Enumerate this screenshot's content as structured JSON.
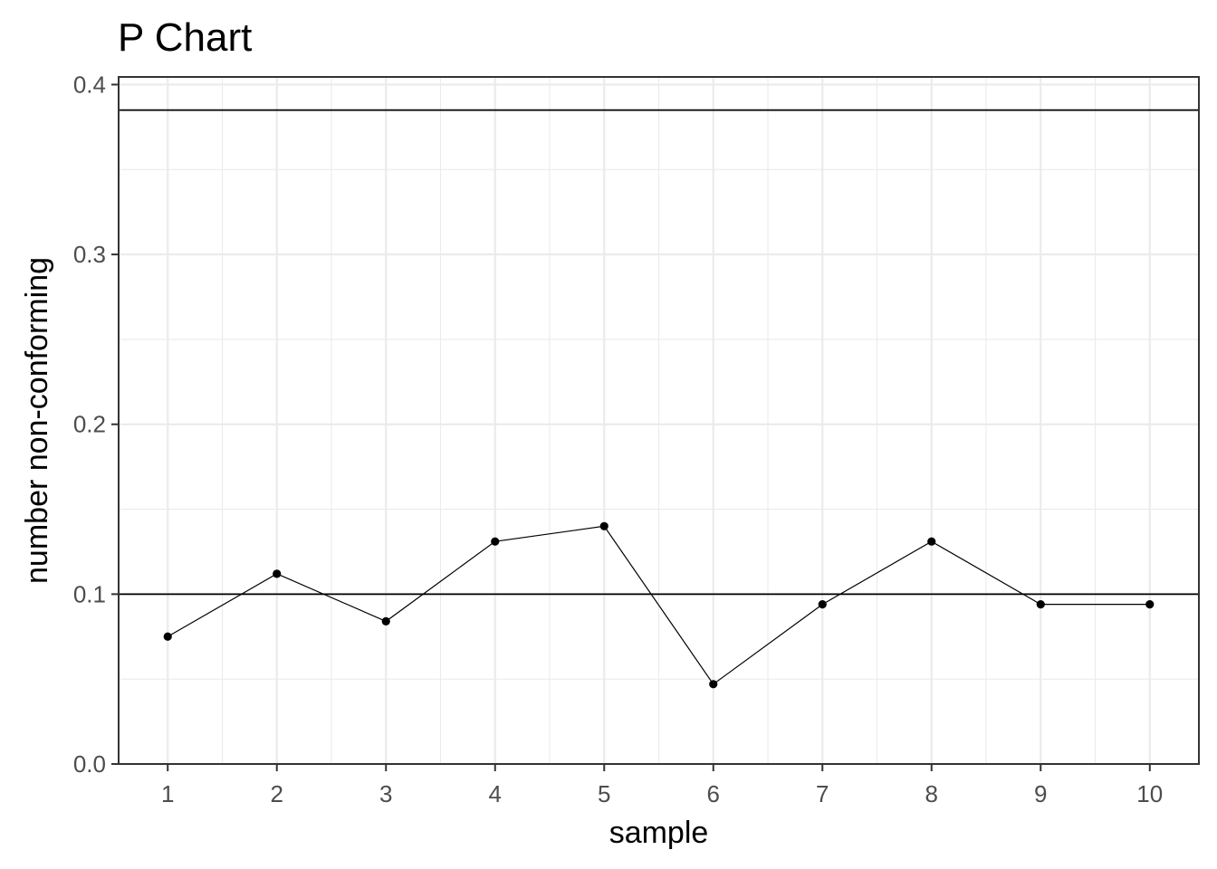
{
  "chart_data": {
    "type": "line",
    "title": "P Chart",
    "xlabel": "sample",
    "ylabel": "number non-conforming",
    "x": [
      1,
      2,
      3,
      4,
      5,
      6,
      7,
      8,
      9,
      10
    ],
    "values": [
      0.075,
      0.112,
      0.084,
      0.131,
      0.14,
      0.047,
      0.094,
      0.131,
      0.094,
      0.094
    ],
    "x_ticks": [
      "1",
      "2",
      "3",
      "4",
      "5",
      "6",
      "7",
      "8",
      "9",
      "10"
    ],
    "y_ticks": [
      "0.0",
      "0.1",
      "0.2",
      "0.3",
      "0.4"
    ],
    "y_tick_values": [
      0,
      0.1,
      0.2,
      0.3,
      0.4
    ],
    "xlim": [
      0.55,
      10.45
    ],
    "ylim": [
      0,
      0.4
    ],
    "control_limits": {
      "center_line": 0.1,
      "upper_control_limit": 0.385
    },
    "grid": true,
    "legend": "none",
    "colors": {
      "series": "#000000",
      "grid": "#ebebeb",
      "border": "#333333",
      "tick_text": "#4d4d4d"
    }
  }
}
